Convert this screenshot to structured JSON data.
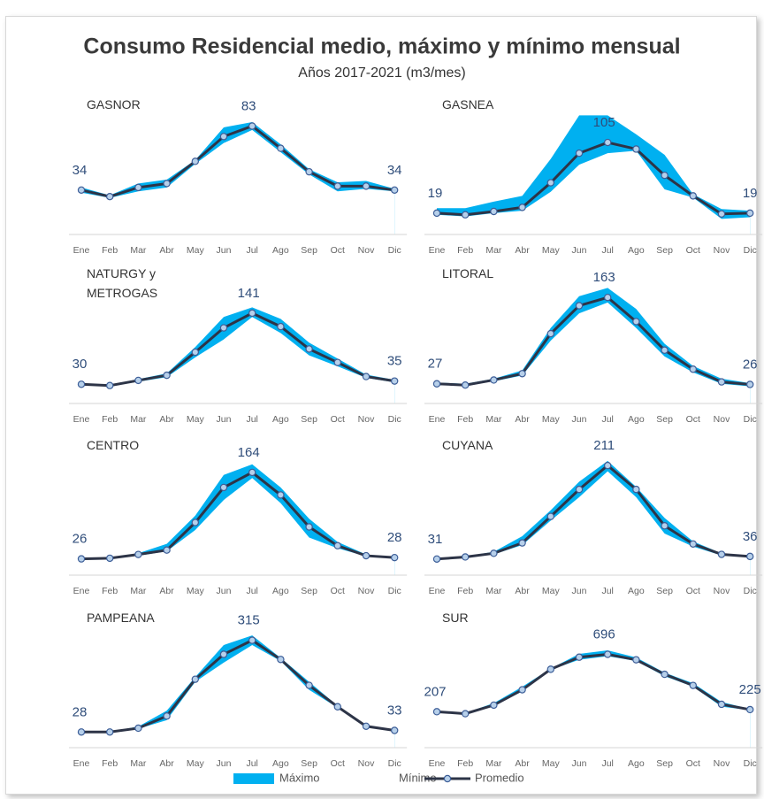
{
  "title": "Consumo Residencial medio, máximo y mínimo mensual",
  "subtitle": "Años 2017-2021 (m3/mes)",
  "chart_data": [
    {
      "type": "line",
      "title": "GASNOR",
      "categories": [
        "Ene",
        "Feb",
        "Mar",
        "Abr",
        "May",
        "Jun",
        "Jul",
        "Ago",
        "Sep",
        "Oct",
        "Nov",
        "Dic"
      ],
      "ylim": [
        0,
        105
      ],
      "series": [
        {
          "name": "Máximo",
          "kind": "area",
          "color": "#00b0f0",
          "values": [
            36,
            30,
            39,
            42,
            57,
            82,
            86,
            69,
            50,
            40,
            41,
            35
          ]
        },
        {
          "name": "Mínimo",
          "kind": "area",
          "color": "#ffffff",
          "values": [
            32,
            28,
            33,
            36,
            54,
            70,
            80,
            63,
            46,
            33,
            35,
            33
          ]
        },
        {
          "name": "Promedio",
          "kind": "line",
          "color": "#2d3447",
          "values": [
            34,
            29,
            36,
            39,
            56,
            75,
            83,
            66,
            48,
            37,
            37,
            34
          ],
          "value_labels": [
            "34",
            null,
            null,
            null,
            null,
            null,
            "83",
            null,
            null,
            null,
            null,
            "34"
          ]
        }
      ]
    },
    {
      "type": "line",
      "title": "GASNEA",
      "categories": [
        "Ene",
        "Feb",
        "Mar",
        "Abr",
        "May",
        "Jun",
        "Jul",
        "Ago",
        "Sep",
        "Oct",
        "Nov",
        "Dic"
      ],
      "ylim": [
        -7,
        160
      ],
      "series": [
        {
          "name": "Máximo",
          "kind": "area",
          "color": "#00b0f0",
          "values": [
            25,
            25,
            33,
            40,
            85,
            138,
            138,
            115,
            90,
            42,
            24,
            22
          ]
        },
        {
          "name": "Mínimo",
          "kind": "area",
          "color": "#ffffff",
          "values": [
            17,
            15,
            19,
            22,
            45,
            78,
            92,
            95,
            48,
            38,
            12,
            14
          ]
        },
        {
          "name": "Promedio",
          "kind": "line",
          "color": "#2d3447",
          "values": [
            19,
            17,
            21,
            26,
            56,
            92,
            105,
            97,
            65,
            40,
            18,
            19
          ],
          "value_labels": [
            "19",
            null,
            null,
            null,
            null,
            null,
            "105",
            null,
            null,
            null,
            null,
            "19"
          ]
        }
      ]
    },
    {
      "type": "line",
      "title": "NATURGY y\nMETROGAS",
      "categories": [
        "Ene",
        "Feb",
        "Mar",
        "Abr",
        "May",
        "Jun",
        "Jul",
        "Ago",
        "Sep",
        "Oct",
        "Nov",
        "Dic"
      ],
      "ylim": [
        0,
        214
      ],
      "series": [
        {
          "name": "Máximo",
          "kind": "area",
          "color": "#00b0f0",
          "values": [
            31,
            29,
            38,
            47,
            88,
            135,
            150,
            132,
            95,
            70,
            45,
            37
          ]
        },
        {
          "name": "Mínimo",
          "kind": "area",
          "color": "#ffffff",
          "values": [
            29,
            27,
            34,
            41,
            72,
            100,
            135,
            110,
            75,
            58,
            40,
            33
          ]
        },
        {
          "name": "Promedio",
          "kind": "line",
          "color": "#2d3447",
          "values": [
            30,
            28,
            36,
            44,
            80,
            118,
            141,
            120,
            85,
            64,
            42,
            35
          ],
          "value_labels": [
            "30",
            null,
            null,
            null,
            null,
            null,
            "141",
            null,
            null,
            null,
            null,
            "35"
          ]
        }
      ]
    },
    {
      "type": "line",
      "title": "LITORAL",
      "categories": [
        "Ene",
        "Feb",
        "Mar",
        "Abr",
        "May",
        "Jun",
        "Jul",
        "Ago",
        "Sep",
        "Oct",
        "Nov",
        "Dic"
      ],
      "ylim": [
        -4,
        212
      ],
      "series": [
        {
          "name": "Máximo",
          "kind": "area",
          "color": "#00b0f0",
          "values": [
            29,
            27,
            35,
            48,
            115,
            165,
            178,
            145,
            90,
            55,
            35,
            28
          ]
        },
        {
          "name": "Mínimo",
          "kind": "area",
          "color": "#ffffff",
          "values": [
            25,
            24,
            31,
            40,
            95,
            138,
            155,
            115,
            70,
            45,
            27,
            23
          ]
        },
        {
          "name": "Promedio",
          "kind": "line",
          "color": "#2d3447",
          "values": [
            27,
            25,
            33,
            43,
            106,
            150,
            163,
            125,
            80,
            50,
            30,
            26
          ],
          "value_labels": [
            "27",
            null,
            null,
            null,
            null,
            null,
            "163",
            null,
            null,
            null,
            null,
            "26"
          ]
        }
      ]
    },
    {
      "type": "line",
      "title": "CENTRO",
      "categories": [
        "Ene",
        "Feb",
        "Mar",
        "Abr",
        "May",
        "Jun",
        "Jul",
        "Ago",
        "Sep",
        "Oct",
        "Nov",
        "Dic"
      ],
      "ylim": [
        0,
        219
      ],
      "series": [
        {
          "name": "Máximo",
          "kind": "area",
          "color": "#00b0f0",
          "values": [
            27,
            28,
            35,
            50,
            95,
            160,
            177,
            140,
            90,
            53,
            33,
            29
          ]
        },
        {
          "name": "Mínimo",
          "kind": "area",
          "color": "#ffffff",
          "values": [
            25,
            26,
            31,
            38,
            72,
            120,
            155,
            115,
            60,
            43,
            30,
            27
          ]
        },
        {
          "name": "Promedio",
          "kind": "line",
          "color": "#2d3447",
          "values": [
            26,
            27,
            33,
            40,
            84,
            140,
            164,
            128,
            77,
            47,
            31,
            28
          ],
          "value_labels": [
            "26",
            null,
            null,
            null,
            null,
            null,
            "164",
            null,
            null,
            null,
            null,
            "28"
          ]
        }
      ]
    },
    {
      "type": "line",
      "title": "CUYANA",
      "categories": [
        "Ene",
        "Feb",
        "Mar",
        "Abr",
        "May",
        "Jun",
        "Jul",
        "Ago",
        "Sep",
        "Oct",
        "Nov",
        "Dic"
      ],
      "ylim": [
        0,
        264
      ],
      "series": [
        {
          "name": "Máximo",
          "kind": "area",
          "color": "#00b0f0",
          "values": [
            32,
            36,
            45,
            75,
            125,
            180,
            220,
            170,
            110,
            65,
            42,
            37
          ]
        },
        {
          "name": "Mínimo",
          "kind": "area",
          "color": "#ffffff",
          "values": [
            30,
            34,
            40,
            58,
            105,
            150,
            200,
            150,
            80,
            55,
            38,
            35
          ]
        },
        {
          "name": "Promedio",
          "kind": "line",
          "color": "#2d3447",
          "values": [
            31,
            35,
            42,
            62,
            113,
            165,
            211,
            165,
            95,
            60,
            40,
            36
          ],
          "value_labels": [
            "31",
            null,
            null,
            null,
            null,
            null,
            "211",
            null,
            null,
            null,
            null,
            "36"
          ]
        }
      ]
    },
    {
      "type": "line",
      "title": "PAMPEANA",
      "categories": [
        "Ene",
        "Feb",
        "Mar",
        "Abr",
        "May",
        "Jun",
        "Jul",
        "Ago",
        "Sep",
        "Oct",
        "Nov",
        "Dic"
      ],
      "ylim": [
        -21,
        408
      ],
      "series": [
        {
          "name": "Máximo",
          "kind": "area",
          "color": "#00b0f0",
          "values": [
            29,
            29,
            45,
            95,
            200,
            300,
            330,
            260,
            185,
            110,
            48,
            34
          ]
        },
        {
          "name": "Mínimo",
          "kind": "area",
          "color": "#ffffff",
          "values": [
            27,
            27,
            38,
            65,
            185,
            245,
            300,
            250,
            160,
            104,
            44,
            32
          ]
        },
        {
          "name": "Promedio",
          "kind": "line",
          "color": "#2d3447",
          "values": [
            28,
            28,
            40,
            78,
            193,
            271,
            315,
            255,
            174,
            107,
            46,
            33
          ],
          "value_labels": [
            "28",
            null,
            null,
            null,
            null,
            null,
            "315",
            null,
            null,
            null,
            null,
            "33"
          ]
        }
      ]
    },
    {
      "type": "line",
      "title": "SUR",
      "categories": [
        "Ene",
        "Feb",
        "Mar",
        "Abr",
        "May",
        "Jun",
        "Jul",
        "Ago",
        "Sep",
        "Oct",
        "Nov",
        "Dic"
      ],
      "ylim": [
        -100,
        1070
      ],
      "series": [
        {
          "name": "Máximo",
          "kind": "area",
          "color": "#00b0f0",
          "values": [
            210,
            195,
            280,
            420,
            575,
            700,
            730,
            670,
            540,
            450,
            290,
            230
          ]
        },
        {
          "name": "Mínimo",
          "kind": "area",
          "color": "#ffffff",
          "values": [
            205,
            185,
            255,
            380,
            565,
            650,
            680,
            640,
            510,
            420,
            250,
            220
          ]
        },
        {
          "name": "Promedio",
          "kind": "line",
          "color": "#2d3447",
          "values": [
            207,
            190,
            263,
            394,
            569,
            672,
            696,
            650,
            526,
            431,
            270,
            225
          ],
          "value_labels": [
            "207",
            null,
            null,
            null,
            null,
            null,
            "696",
            null,
            null,
            null,
            null,
            "225"
          ]
        }
      ]
    }
  ]
}
